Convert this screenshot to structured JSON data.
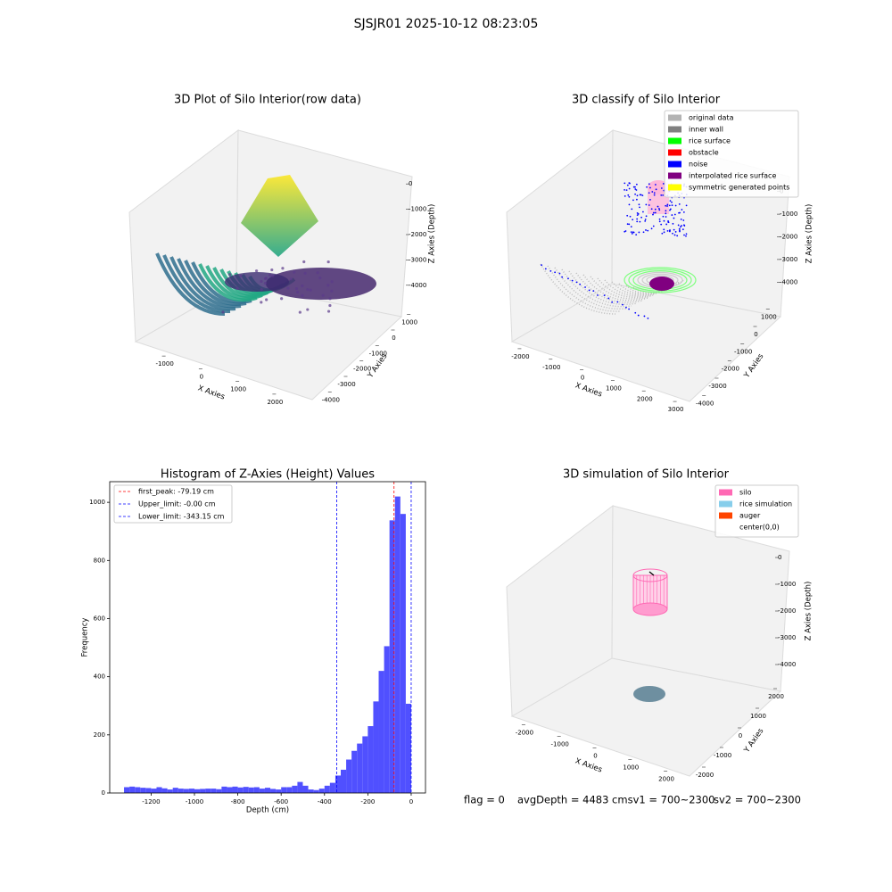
{
  "title": "SJSJR01 2025-10-12 08:23:05",
  "chart_data": [
    {
      "type": "scatter3d",
      "title": "3D Plot of Silo Interior(row data)",
      "x_label": "X Axies",
      "y_label": "Y Axies",
      "z_label": "Z Axies (Depth)",
      "xlim": [
        -1500,
        2500
      ],
      "xticks": [
        -1000,
        0,
        1000,
        2000
      ],
      "ylim": [
        -4500,
        1500
      ],
      "yticks": [
        -4000,
        -3000,
        -2000,
        -1000,
        0,
        1000
      ],
      "zlim": [
        -4500,
        500
      ],
      "zticks": [
        0,
        -1000,
        -2000,
        -3000,
        -4000
      ]
    },
    {
      "type": "scatter3d",
      "title": "3D classify of Silo Interior",
      "x_label": "X Axies",
      "y_label": "Y Axies",
      "z_label": "Z Axies (Depth)",
      "xlim": [
        -2500,
        3500
      ],
      "xticks": [
        -2000,
        -1000,
        0,
        1000,
        2000,
        3000
      ],
      "ylim": [
        -4500,
        1500
      ],
      "yticks": [
        -4000,
        -3000,
        -2000,
        -1000,
        0,
        1000
      ],
      "zlim": [
        -4500,
        500
      ],
      "zticks": [
        0,
        -1000,
        -2000,
        -3000,
        -4000
      ],
      "legend": [
        {
          "name": "original data",
          "color": "#b3b3b3"
        },
        {
          "name": "inner wall",
          "color": "#808080"
        },
        {
          "name": "rice surface",
          "color": "#00ff00"
        },
        {
          "name": "obstacle",
          "color": "#ff0000"
        },
        {
          "name": "noise",
          "color": "#0000ff"
        },
        {
          "name": "interpolated rice surface",
          "color": "#800080"
        },
        {
          "name": "symmetric generated points",
          "color": "#ffff00"
        }
      ]
    },
    {
      "type": "histogram",
      "title": "Histogram of Z-Axies (Height) Values",
      "x_label": "Depth (cm)",
      "y_label": "Frequency",
      "color": "#5050ff",
      "bins": [
        -1325,
        -1300,
        -1275,
        -1250,
        -1225,
        -1200,
        -1175,
        -1150,
        -1125,
        -1100,
        -1075,
        -1050,
        -1025,
        -1000,
        -975,
        -950,
        -925,
        -900,
        -875,
        -850,
        -825,
        -800,
        -775,
        -750,
        -725,
        -700,
        -675,
        -650,
        -625,
        -600,
        -575,
        -550,
        -525,
        -500,
        -475,
        -450,
        -425,
        -400,
        -375,
        -350,
        -325,
        -300,
        -275,
        -250,
        -225,
        -200,
        -175,
        -150,
        -125,
        -100,
        -75,
        -50,
        -25,
        0
      ],
      "values": [
        20,
        22,
        20,
        18,
        17,
        15,
        20,
        16,
        12,
        18,
        15,
        14,
        15,
        13,
        14,
        15,
        15,
        13,
        22,
        20,
        22,
        19,
        21,
        19,
        20,
        15,
        18,
        14,
        12,
        20,
        20,
        25,
        38,
        25,
        12,
        10,
        15,
        25,
        35,
        60,
        80,
        115,
        145,
        170,
        195,
        230,
        315,
        420,
        505,
        938,
        1020,
        960,
        307
      ],
      "xlim": [
        -1391,
        66
      ],
      "xticks": [
        -1200,
        -1000,
        -800,
        -600,
        -400,
        -200,
        0
      ],
      "ylim": [
        0,
        1071
      ],
      "yticks": [
        0,
        200,
        400,
        600,
        800,
        1000
      ],
      "lines": [
        {
          "label": "first_peak: -79.19 cm",
          "value": -79.19,
          "color": "#ff0000"
        },
        {
          "label": "Upper_limit: -0.00 cm",
          "value": 0,
          "color": "#0000ff"
        },
        {
          "label": "Lower_limit: -343.15 cm",
          "value": -343.15,
          "color": "#0000ff"
        }
      ]
    },
    {
      "type": "scatter3d",
      "title": "3D simulation of Silo Interior",
      "x_label": "X Axies",
      "y_label": "Y Axies",
      "z_label": "Z Axies (Depth)",
      "xlim": [
        -2500,
        2500
      ],
      "xticks": [
        -2000,
        -1000,
        0,
        1000,
        2000
      ],
      "ylim": [
        -2500,
        2500
      ],
      "yticks": [
        -2000,
        -1000,
        0,
        1000,
        2000
      ],
      "zlim": [
        -4500,
        500
      ],
      "zticks": [
        0,
        -1000,
        -2000,
        -3000,
        -4000
      ],
      "legend": [
        {
          "name": "silo",
          "color": "#ff69b4"
        },
        {
          "name": "rice simulation",
          "color": "#87ceeb"
        },
        {
          "name": "auger",
          "color": "#ff4500"
        },
        {
          "name": "center(0,0)",
          "color": "#ffffff"
        }
      ]
    }
  ],
  "status": [
    "flag = 0",
    "avgDepth = 4483 cmsv1 = 700~2300",
    "sv2 = 700~2300"
  ]
}
